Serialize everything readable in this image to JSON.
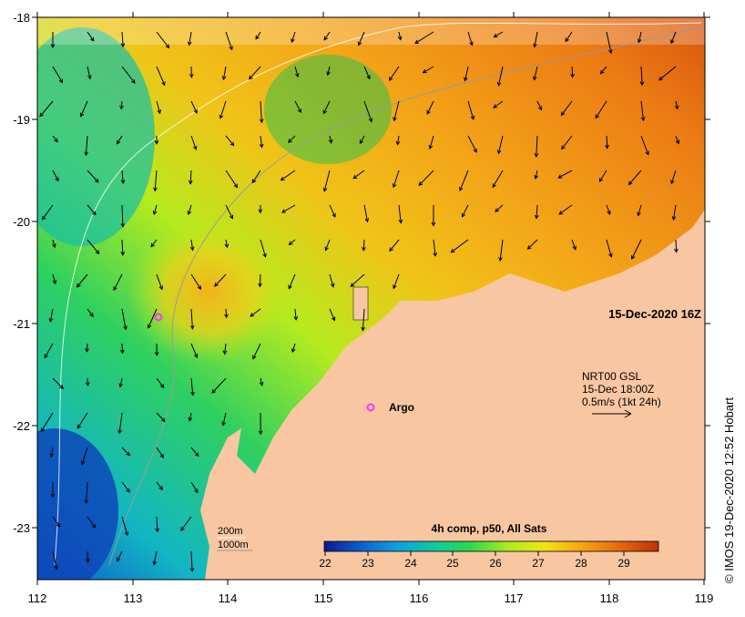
{
  "map": {
    "lon_labels": [
      "112",
      "113",
      "114",
      "115",
      "116",
      "117",
      "118",
      "119"
    ],
    "lat_labels": [
      "-18",
      "-19",
      "-20",
      "-21",
      "-22",
      "-23"
    ],
    "timestamp": "15-Dec-2020 16Z",
    "current_legend": {
      "line1": "NRT00 GSL",
      "line2": "15-Dec 18:00Z",
      "line3": "0.5m/s (1kt 24h)"
    },
    "argo": {
      "label": "Argo",
      "color": "#ff33ff"
    },
    "depth_legend": {
      "contour1": "200m",
      "contour2": "1000m"
    },
    "colorbar": {
      "title": "4h comp, p50, All Sats",
      "ticks": [
        "22",
        "23",
        "24",
        "25",
        "26",
        "27",
        "28",
        "29"
      ],
      "colors": [
        "#0a1a8c",
        "#0d5fd6",
        "#0fa0e0",
        "#10c9a0",
        "#2fd84a",
        "#a8ee20",
        "#f2e414",
        "#f7a415",
        "#e66a10",
        "#c03008"
      ]
    },
    "land_color": "#f8c7a2",
    "credit": "© IMOS 19-Dec-2020 12:52 Hobart"
  }
}
